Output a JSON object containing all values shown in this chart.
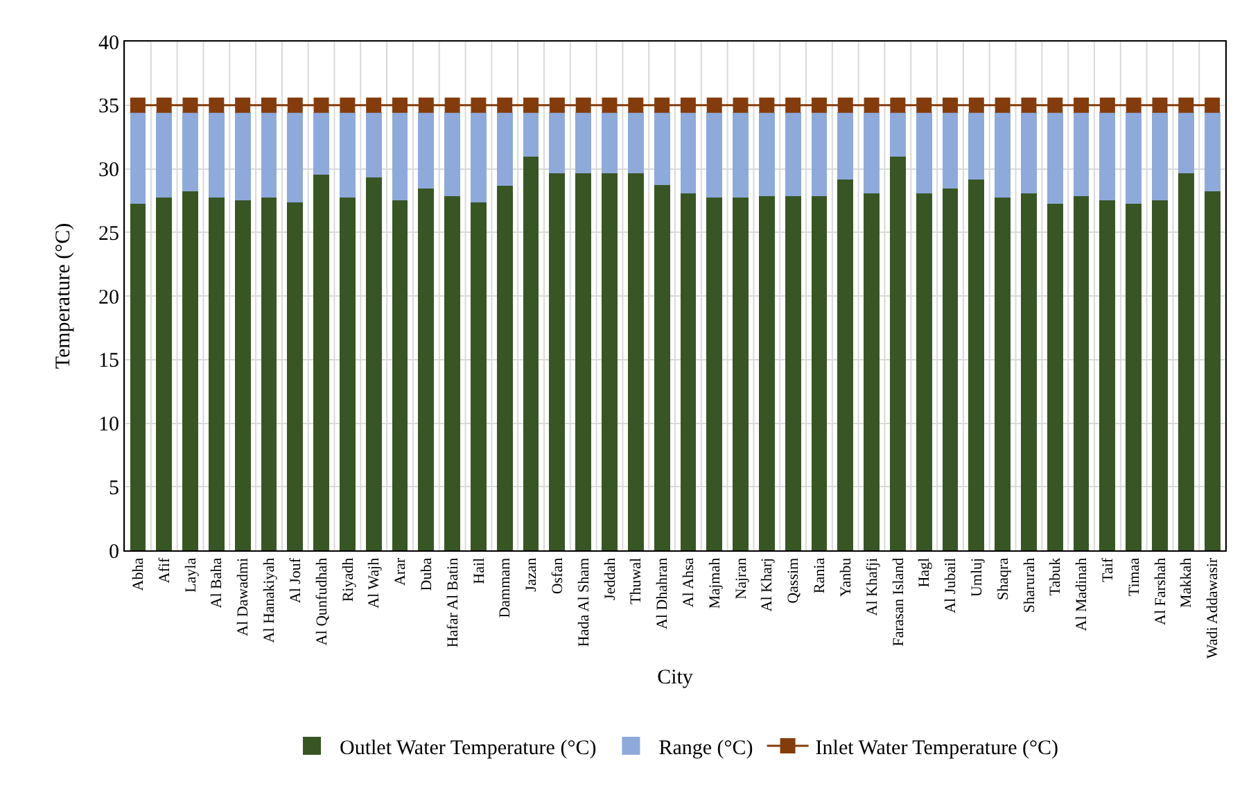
{
  "chart_data": {
    "type": "bar",
    "stacked": true,
    "xlabel": "City",
    "ylabel": "Temperature (°C)",
    "categories": [
      "Abha",
      "Afif",
      "Layla",
      "Al Baha",
      "Al Dawadmi",
      "Al Hanakiyah",
      "Al Jouf",
      "Al Qunfudhah",
      "Riyadh",
      "Al Wajh",
      "Arar",
      "Duba",
      "Hafar Al Batin",
      "Hail",
      "Dammam",
      "Jazan",
      "Osfan",
      "Hada Al Sham",
      "Jeddah",
      "Thuwal",
      "Al Dhahran",
      "Al Ahsa",
      "Majmah",
      "Najran",
      "Al Kharj",
      "Qassim",
      "Rania",
      "Yanbu",
      "Al Khafji",
      "Farasan Island",
      "Hagl",
      "Al Jubail",
      "Umluj",
      "Shaqra",
      "Sharurah",
      "Tabuk",
      "Al Madinah",
      "Taif",
      "Timaa",
      "Al Farshah",
      "Makkah",
      "Wadi Addawasir"
    ],
    "series": [
      {
        "name": "Outlet Water Temperature (°C)",
        "color": "#375623",
        "values": [
          27.3,
          27.8,
          28.3,
          27.8,
          27.6,
          27.8,
          27.4,
          29.6,
          27.8,
          29.4,
          27.6,
          28.5,
          27.9,
          27.4,
          28.7,
          31.0,
          29.7,
          29.7,
          29.7,
          29.7,
          28.8,
          28.1,
          27.8,
          27.8,
          27.9,
          27.9,
          27.9,
          29.2,
          28.1,
          31.0,
          28.1,
          28.5,
          29.2,
          27.8,
          28.1,
          27.3,
          27.9,
          27.6,
          27.3,
          27.6,
          29.7,
          28.3
        ]
      },
      {
        "name": "Range (°C)",
        "color": "#8eaadb",
        "values": [
          7.1,
          6.6,
          6.1,
          6.6,
          6.8,
          6.6,
          7.0,
          4.8,
          6.6,
          5.0,
          6.8,
          5.9,
          6.5,
          7.0,
          5.7,
          3.4,
          4.7,
          4.7,
          4.7,
          4.7,
          5.6,
          6.3,
          6.6,
          6.6,
          6.5,
          6.5,
          6.5,
          5.2,
          6.3,
          3.4,
          6.3,
          5.9,
          5.2,
          6.6,
          6.3,
          7.1,
          6.5,
          6.8,
          7.1,
          6.8,
          4.7,
          6.1
        ]
      },
      {
        "name": "Inlet Water Temperature (°C)",
        "type": "line",
        "color": "#843c0c",
        "marker": "square",
        "line_style": "solid",
        "values": [
          35,
          35,
          35,
          35,
          35,
          35,
          35,
          35,
          35,
          35,
          35,
          35,
          35,
          35,
          35,
          35,
          35,
          35,
          35,
          35,
          35,
          35,
          35,
          35,
          35,
          35,
          35,
          35,
          35,
          35,
          35,
          35,
          35,
          35,
          35,
          35,
          35,
          35,
          35,
          35,
          35,
          35
        ]
      }
    ],
    "ylim": [
      0,
      40
    ],
    "yticks": [
      0,
      5,
      10,
      15,
      20,
      25,
      30,
      35,
      40
    ],
    "grid": true,
    "legend": "bottom"
  }
}
